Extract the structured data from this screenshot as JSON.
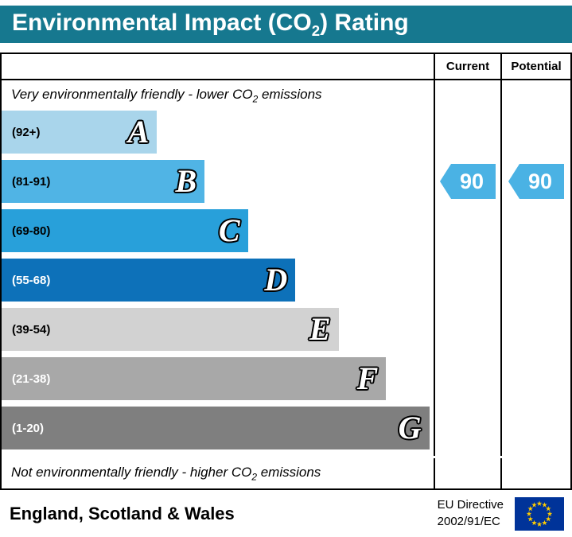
{
  "title": {
    "prefix": "Environmental Impact (CO",
    "sub": "2",
    "suffix": ") Rating"
  },
  "columns": {
    "current": "Current",
    "potential": "Potential"
  },
  "top_note": {
    "prefix": "Very environmentally friendly - lower CO",
    "sub": "2",
    "suffix": " emissions"
  },
  "bottom_note": {
    "prefix": "Not environmentally friendly - higher CO",
    "sub": "2",
    "suffix": " emissions"
  },
  "chart_data": {
    "type": "bar",
    "title": "Environmental Impact (CO2) Rating",
    "bands": [
      {
        "letter": "A",
        "range_label": "(92+)",
        "range_min": 92,
        "range_max": 100,
        "color": "#a9d5eb",
        "width_pct": 36,
        "label_color": "#000000"
      },
      {
        "letter": "B",
        "range_label": "(81-91)",
        "range_min": 81,
        "range_max": 91,
        "color": "#50b4e5",
        "width_pct": 47,
        "label_color": "#000000"
      },
      {
        "letter": "C",
        "range_label": "(69-80)",
        "range_min": 69,
        "range_max": 80,
        "color": "#28a0da",
        "width_pct": 57,
        "label_color": "#000000"
      },
      {
        "letter": "D",
        "range_label": "(55-68)",
        "range_min": 55,
        "range_max": 68,
        "color": "#0d71b9",
        "width_pct": 68,
        "label_color": "#ffffff"
      },
      {
        "letter": "E",
        "range_label": "(39-54)",
        "range_min": 39,
        "range_max": 54,
        "color": "#d2d2d2",
        "width_pct": 78,
        "label_color": "#000000"
      },
      {
        "letter": "F",
        "range_label": "(21-38)",
        "range_min": 21,
        "range_max": 38,
        "color": "#a8a8a8",
        "width_pct": 89,
        "label_color": "#ffffff"
      },
      {
        "letter": "G",
        "range_label": "(1-20)",
        "range_min": 1,
        "range_max": 20,
        "color": "#7f7f7f",
        "width_pct": 99,
        "label_color": "#ffffff"
      }
    ],
    "current": {
      "value": "90",
      "band": "B",
      "band_index": 1
    },
    "potential": {
      "value": "90",
      "band": "B",
      "band_index": 1
    }
  },
  "footer": {
    "region": "England, Scotland & Wales",
    "directive_line1": "EU Directive",
    "directive_line2": "2002/91/EC"
  },
  "colors": {
    "title_bg": "#16788f",
    "title_text": "#ffffff",
    "rating_arrow": "#4ab2e4",
    "flag_bg": "#003399",
    "flag_star": "#ffcc00"
  }
}
